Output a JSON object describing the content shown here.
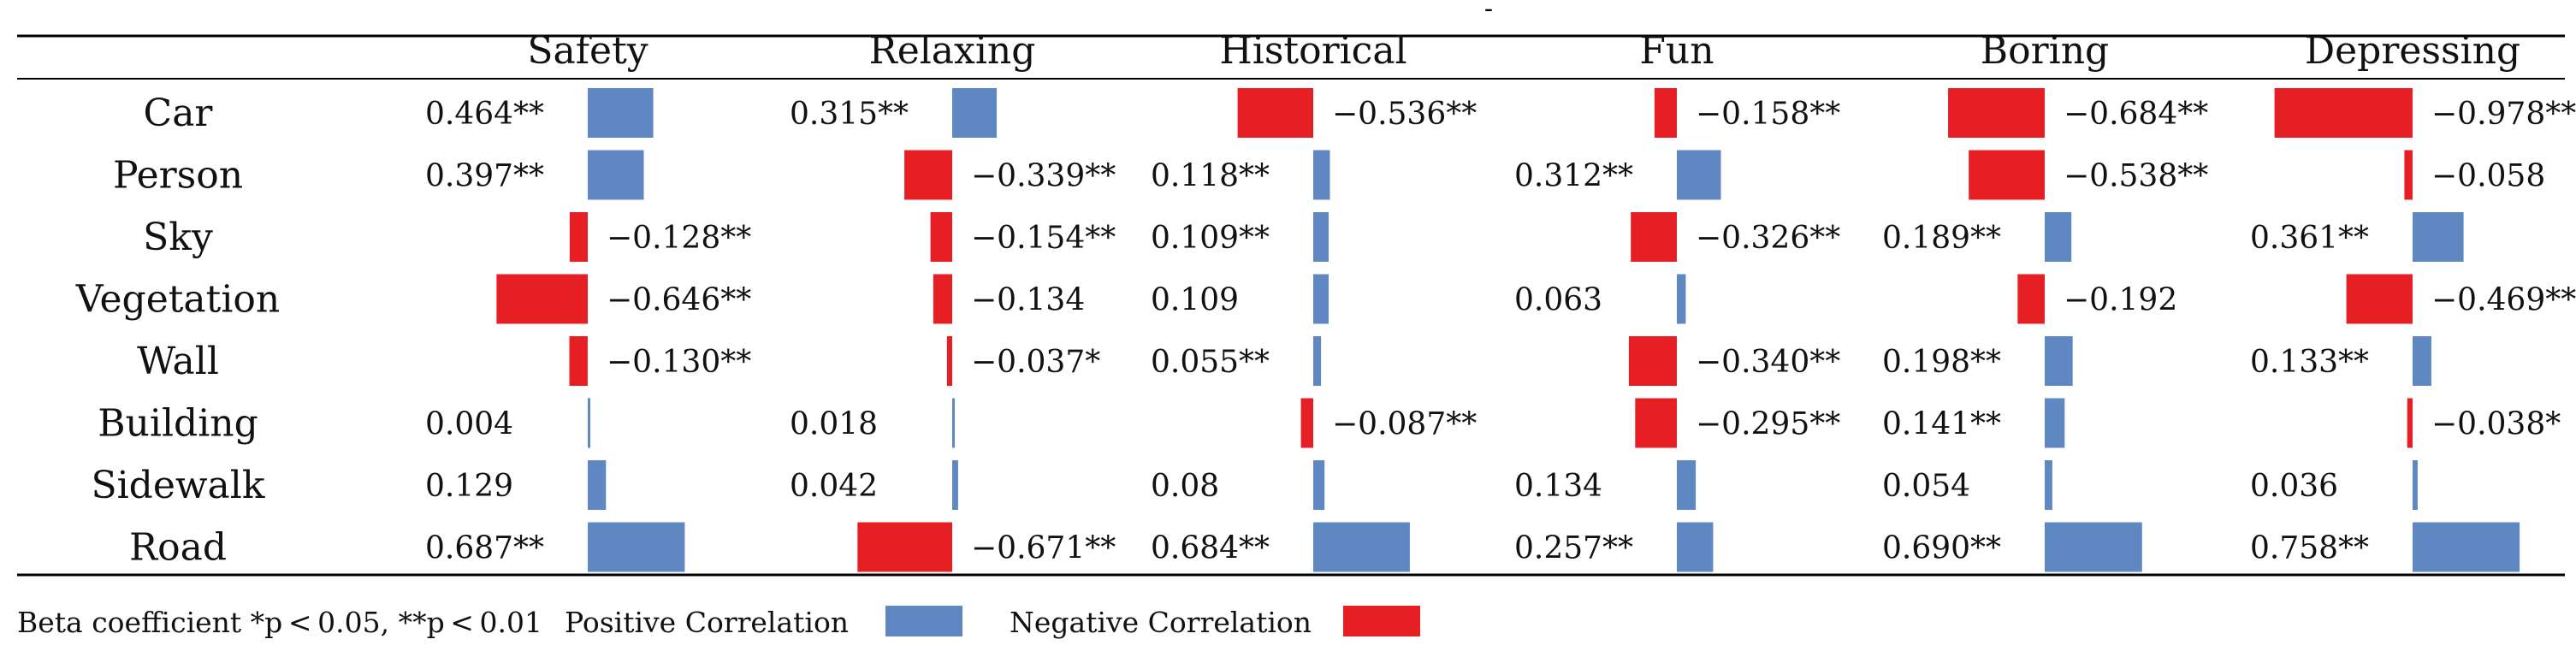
{
  "top_mark": "-",
  "columns": [
    "Safety",
    "Relaxing",
    "Historical",
    "Fun",
    "Boring",
    "Depressing"
  ],
  "rows": [
    "Car",
    "Person",
    "Sky",
    "Vegetation",
    "Wall",
    "Building",
    "Sidewalk",
    "Road"
  ],
  "cells": [
    [
      {
        "label": "0.464**",
        "value": 0.464
      },
      {
        "label": "0.315**",
        "value": 0.315
      },
      {
        "label": "−0.536**",
        "value": -0.536
      },
      {
        "label": "−0.158**",
        "value": -0.158
      },
      {
        "label": "−0.684**",
        "value": -0.684
      },
      {
        "label": "−0.978**",
        "value": -0.978
      }
    ],
    [
      {
        "label": "0.397**",
        "value": 0.397
      },
      {
        "label": "−0.339**",
        "value": -0.339
      },
      {
        "label": "0.118**",
        "value": 0.118
      },
      {
        "label": "0.312**",
        "value": 0.312
      },
      {
        "label": "−0.538**",
        "value": -0.538
      },
      {
        "label": "−0.058",
        "value": -0.058
      }
    ],
    [
      {
        "label": "−0.128**",
        "value": -0.128
      },
      {
        "label": "−0.154**",
        "value": -0.154
      },
      {
        "label": "0.109**",
        "value": 0.109
      },
      {
        "label": "−0.326**",
        "value": -0.326
      },
      {
        "label": "0.189**",
        "value": 0.189
      },
      {
        "label": "0.361**",
        "value": 0.361
      }
    ],
    [
      {
        "label": "−0.646**",
        "value": -0.646
      },
      {
        "label": "−0.134",
        "value": -0.134
      },
      {
        "label": "0.109",
        "value": 0.109
      },
      {
        "label": "0.063",
        "value": 0.063
      },
      {
        "label": "−0.192",
        "value": -0.192
      },
      {
        "label": "−0.469**",
        "value": -0.469
      }
    ],
    [
      {
        "label": "−0.130**",
        "value": -0.13
      },
      {
        "label": "−0.037*",
        "value": -0.037
      },
      {
        "label": "0.055**",
        "value": 0.055
      },
      {
        "label": "−0.340**",
        "value": -0.34
      },
      {
        "label": "0.198**",
        "value": 0.198
      },
      {
        "label": "0.133**",
        "value": 0.133
      }
    ],
    [
      {
        "label": "0.004",
        "value": 0.004
      },
      {
        "label": "0.018",
        "value": 0.018
      },
      {
        "label": "−0.087**",
        "value": -0.087
      },
      {
        "label": "−0.295**",
        "value": -0.295
      },
      {
        "label": "0.141**",
        "value": 0.141
      },
      {
        "label": "−0.038*",
        "value": -0.038
      }
    ],
    [
      {
        "label": "0.129",
        "value": 0.129
      },
      {
        "label": "0.042",
        "value": 0.042
      },
      {
        "label": "0.08",
        "value": 0.08
      },
      {
        "label": "0.134",
        "value": 0.134
      },
      {
        "label": "0.054",
        "value": 0.054
      },
      {
        "label": "0.036",
        "value": 0.036
      }
    ],
    [
      {
        "label": "0.687**",
        "value": 0.687
      },
      {
        "label": "−0.671**",
        "value": -0.671
      },
      {
        "label": "0.684**",
        "value": 0.684
      },
      {
        "label": "0.257**",
        "value": 0.257
      },
      {
        "label": "0.690**",
        "value": 0.69
      },
      {
        "label": "0.758**",
        "value": 0.758
      }
    ]
  ],
  "footnote": "Beta coefficient *p < 0.05, **p < 0.01",
  "legend": {
    "positive_label": "Positive Correlation",
    "negative_label": "Negative Correlation"
  },
  "colors": {
    "positive": "#5f87c2",
    "negative": "#e51f24",
    "rule": "#000000",
    "text": "#111111"
  },
  "chart_data": {
    "type": "table",
    "value_range": [
      -1,
      1
    ],
    "grid": false,
    "legend_position": "bottom-left"
  }
}
